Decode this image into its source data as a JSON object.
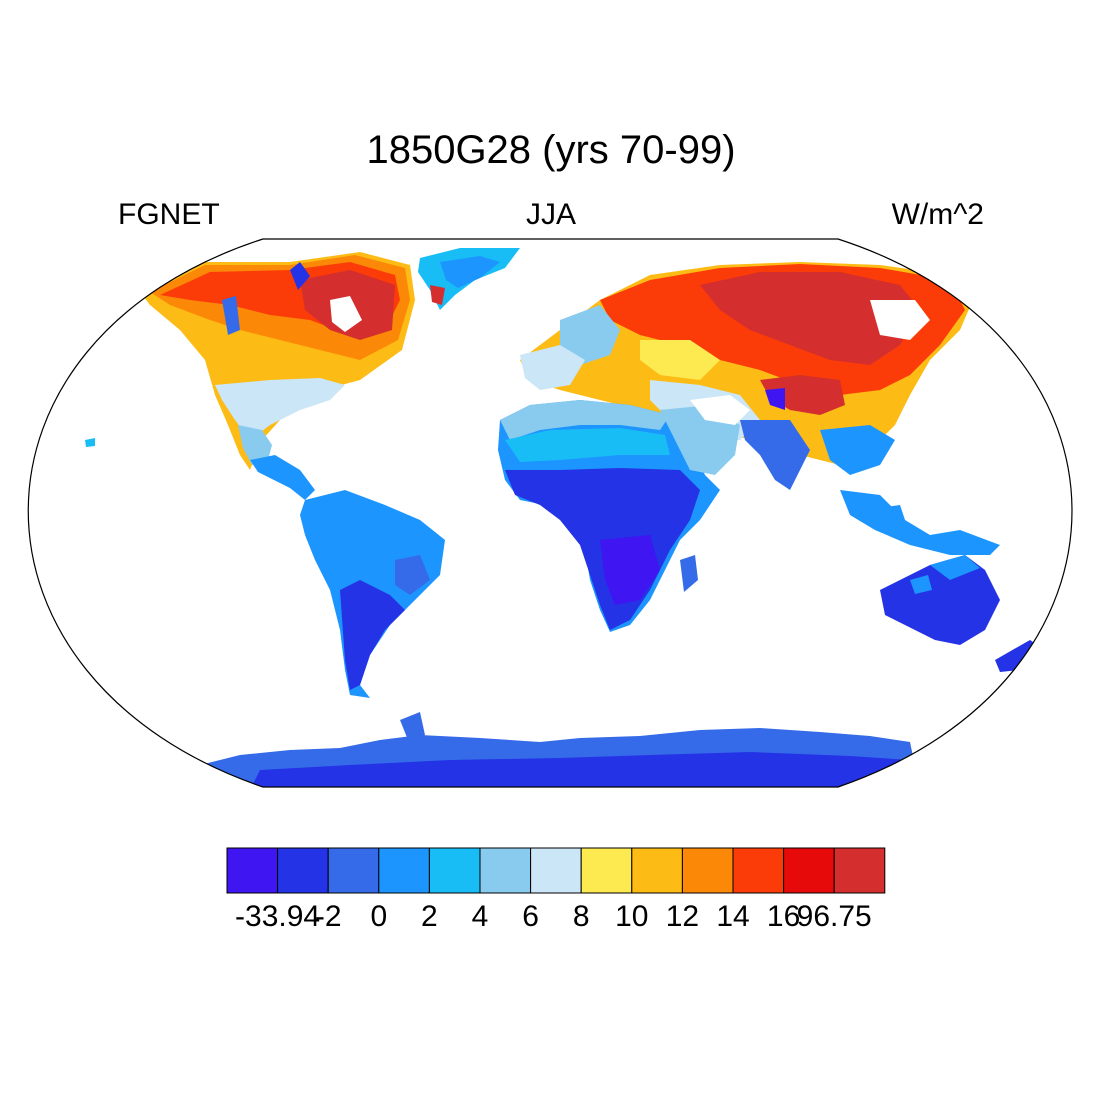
{
  "title": "1850G28 (yrs 70-99)",
  "subtitle_left": "FGNET",
  "subtitle_center": "JJA",
  "subtitle_right": "W/m^2",
  "projection": "Robinson",
  "colorbar": {
    "colors": [
      "#3f15f2",
      "#2433e6",
      "#356be8",
      "#1c95ff",
      "#18bdf6",
      "#88cbef",
      "#cbe6f7",
      "#fde950",
      "#fdbb15",
      "#fb8907",
      "#fc3c08",
      "#e60a0a",
      "#d42e2e"
    ],
    "labels": [
      "-33.94",
      "-2",
      "0",
      "2",
      "4",
      "6",
      "8",
      "10",
      "12",
      "14",
      "16",
      "96.75"
    ],
    "min": -33.94,
    "max": 96.75
  },
  "colors": {
    "ocean": "#ffffff",
    "outline": "#000000"
  }
}
